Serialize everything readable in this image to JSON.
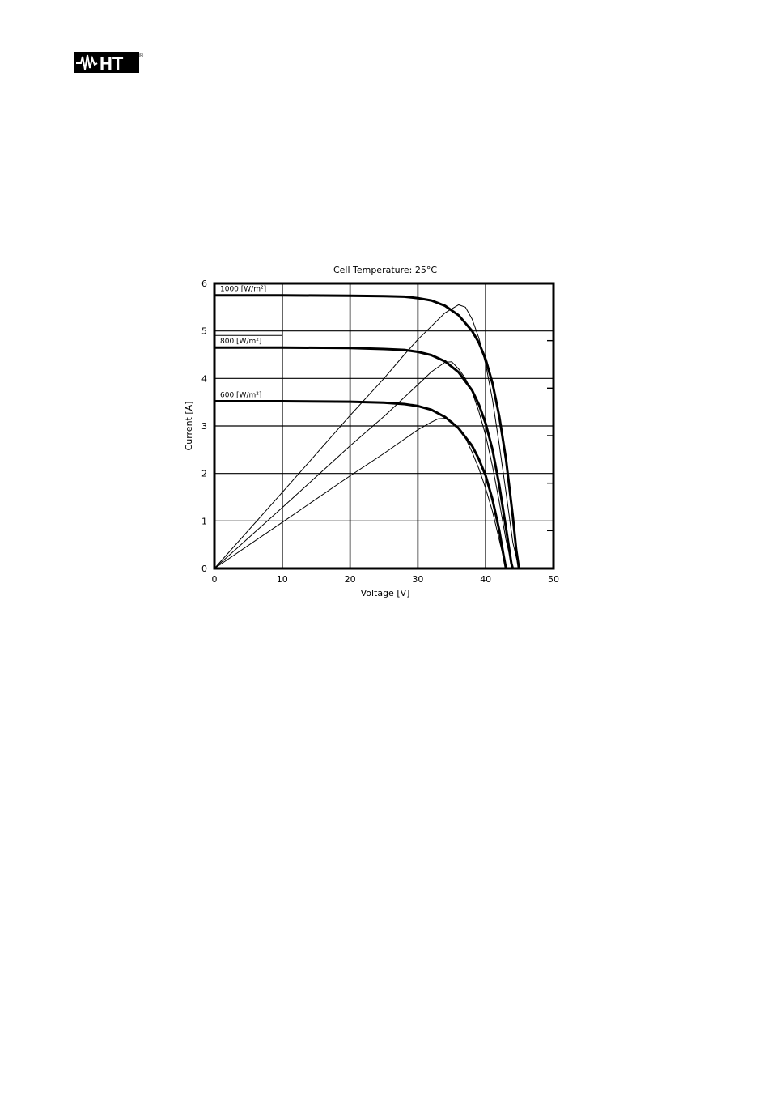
{
  "header": {
    "logo_text": "HT",
    "logo_mark": "®"
  },
  "chart_data": {
    "type": "line",
    "title": "Cell Temperature:  25°C",
    "xlabel": "Voltage [V]",
    "ylabel": "Current [A]",
    "xlim": [
      0,
      50
    ],
    "ylim": [
      0,
      6
    ],
    "xticks": [
      "0",
      "10",
      "20",
      "30",
      "40",
      "50"
    ],
    "yticks": [
      "0",
      "1",
      "2",
      "3",
      "4",
      "5",
      "6"
    ],
    "grid": true,
    "series": [
      {
        "name": "1000 [W/m²]",
        "kind": "current",
        "points": [
          [
            0,
            5.75
          ],
          [
            10,
            5.75
          ],
          [
            20,
            5.74
          ],
          [
            25,
            5.73
          ],
          [
            28,
            5.72
          ],
          [
            30,
            5.69
          ],
          [
            32,
            5.64
          ],
          [
            34,
            5.53
          ],
          [
            36,
            5.33
          ],
          [
            38,
            5.0
          ],
          [
            39,
            4.75
          ],
          [
            40,
            4.4
          ],
          [
            41,
            3.9
          ],
          [
            42,
            3.2
          ],
          [
            43,
            2.3
          ],
          [
            44,
            1.1
          ],
          [
            44.5,
            0.4
          ],
          [
            44.9,
            0
          ]
        ]
      },
      {
        "name": "800 [W/m²]",
        "kind": "current",
        "points": [
          [
            0,
            4.65
          ],
          [
            10,
            4.65
          ],
          [
            20,
            4.64
          ],
          [
            25,
            4.62
          ],
          [
            28,
            4.6
          ],
          [
            30,
            4.56
          ],
          [
            32,
            4.49
          ],
          [
            34,
            4.36
          ],
          [
            36,
            4.13
          ],
          [
            38,
            3.75
          ],
          [
            39,
            3.45
          ],
          [
            40,
            3.05
          ],
          [
            41,
            2.5
          ],
          [
            42,
            1.75
          ],
          [
            43,
            0.85
          ],
          [
            43.8,
            0.1
          ],
          [
            44,
            0
          ]
        ]
      },
      {
        "name": "600 [W/m²]",
        "kind": "current",
        "points": [
          [
            0,
            3.52
          ],
          [
            10,
            3.52
          ],
          [
            20,
            3.51
          ],
          [
            25,
            3.49
          ],
          [
            28,
            3.46
          ],
          [
            30,
            3.42
          ],
          [
            32,
            3.34
          ],
          [
            34,
            3.19
          ],
          [
            36,
            2.95
          ],
          [
            38,
            2.58
          ],
          [
            39,
            2.3
          ],
          [
            40,
            1.95
          ],
          [
            41,
            1.45
          ],
          [
            42,
            0.8
          ],
          [
            42.6,
            0.3
          ],
          [
            43,
            0
          ]
        ]
      },
      {
        "name": "",
        "kind": "power",
        "points": [
          [
            0,
            0
          ],
          [
            10,
            1.6
          ],
          [
            20,
            3.22
          ],
          [
            25,
            4.0
          ],
          [
            28,
            4.5
          ],
          [
            30,
            4.82
          ],
          [
            32,
            5.1
          ],
          [
            34,
            5.38
          ],
          [
            36,
            5.55
          ],
          [
            37,
            5.5
          ],
          [
            38,
            5.25
          ],
          [
            39,
            4.85
          ],
          [
            40,
            4.3
          ],
          [
            41,
            3.55
          ],
          [
            42,
            2.6
          ],
          [
            43,
            1.6
          ],
          [
            44,
            0.55
          ],
          [
            44.9,
            0
          ]
        ]
      },
      {
        "name": "",
        "kind": "power",
        "points": [
          [
            0,
            0
          ],
          [
            10,
            1.28
          ],
          [
            20,
            2.58
          ],
          [
            25,
            3.2
          ],
          [
            28,
            3.6
          ],
          [
            30,
            3.87
          ],
          [
            32,
            4.14
          ],
          [
            34,
            4.34
          ],
          [
            35,
            4.35
          ],
          [
            36,
            4.2
          ],
          [
            37,
            4.0
          ],
          [
            38,
            3.72
          ],
          [
            39,
            3.3
          ],
          [
            40,
            2.8
          ],
          [
            41,
            2.15
          ],
          [
            42,
            1.4
          ],
          [
            43,
            0.6
          ],
          [
            44,
            0
          ]
        ]
      },
      {
        "name": "",
        "kind": "power",
        "points": [
          [
            0,
            0
          ],
          [
            10,
            0.97
          ],
          [
            20,
            1.95
          ],
          [
            25,
            2.42
          ],
          [
            28,
            2.72
          ],
          [
            30,
            2.92
          ],
          [
            32,
            3.08
          ],
          [
            33,
            3.15
          ],
          [
            34,
            3.16
          ],
          [
            35,
            3.1
          ],
          [
            36,
            2.95
          ],
          [
            37,
            2.75
          ],
          [
            38,
            2.45
          ],
          [
            39,
            2.1
          ],
          [
            40,
            1.68
          ],
          [
            41,
            1.2
          ],
          [
            42,
            0.6
          ],
          [
            43,
            0
          ]
        ]
      }
    ]
  }
}
